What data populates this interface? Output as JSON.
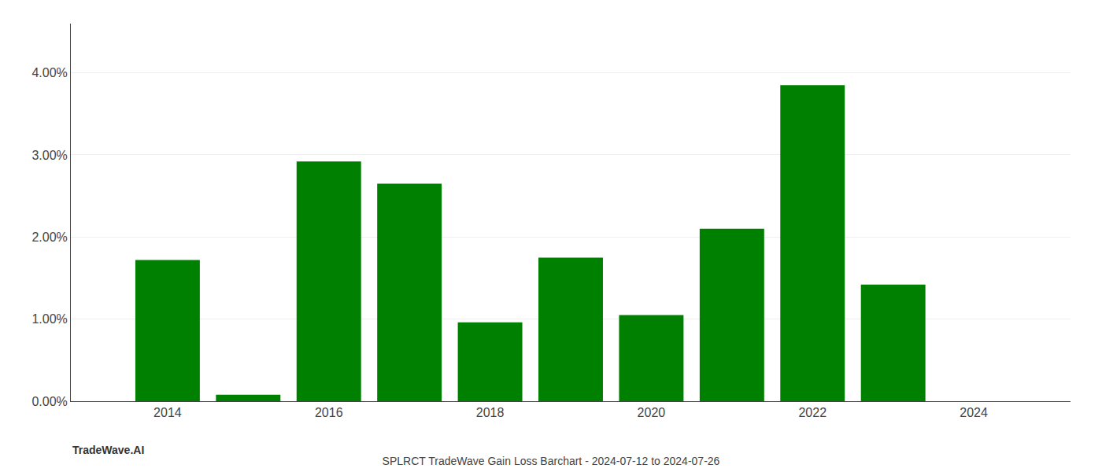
{
  "chart_data": {
    "type": "bar",
    "title": "SPLRCT TradeWave Gain Loss Barchart - 2024-07-12 to 2024-07-26",
    "annotations": [
      "TradeWave.AI"
    ],
    "x": [
      2014,
      2015,
      2016,
      2017,
      2018,
      2019,
      2020,
      2021,
      2022,
      2023
    ],
    "values": [
      0.0172,
      0.0008,
      0.0292,
      0.0265,
      0.0096,
      0.0175,
      0.0105,
      0.021,
      0.0385,
      0.0142
    ],
    "color": "#008000",
    "xlim": [
      2012.8,
      2025.2
    ],
    "xticks": [
      2014,
      2016,
      2018,
      2020,
      2022,
      2024
    ],
    "ylim": [
      0,
      0.046
    ],
    "yticks": [
      {
        "value": 0.0,
        "label": "0.00%"
      },
      {
        "value": 0.01,
        "label": "1.00%"
      },
      {
        "value": 0.02,
        "label": "2.00%"
      },
      {
        "value": 0.03,
        "label": "3.00%"
      },
      {
        "value": 0.04,
        "label": "4.00%"
      }
    ],
    "grid": true
  }
}
